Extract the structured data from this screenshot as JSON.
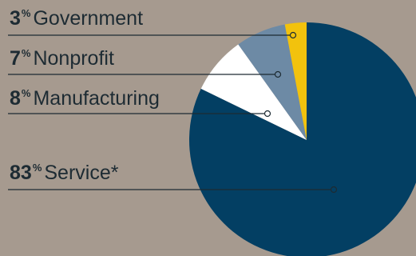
{
  "chart_data": {
    "type": "pie",
    "slices": [
      {
        "label": "Service*",
        "value": 83,
        "value_label": "83",
        "color": "#033f63"
      },
      {
        "label": "Manufacturing",
        "value": 8,
        "value_label": "8",
        "color": "#ffffff"
      },
      {
        "label": "Nonprofit",
        "value": 7,
        "value_label": "7",
        "color": "#6d8aa5"
      },
      {
        "label": "Government",
        "value": 3,
        "value_label": "3",
        "color": "#f2c20d"
      }
    ],
    "unit_symbol": "%",
    "start": "12 o'clock",
    "direction": "clockwise",
    "legend_placement": "left, with leader lines to slices"
  },
  "colors": {
    "background": "#a69a8f",
    "text": "#1d2b33",
    "leader_line": "#1d2b33"
  }
}
